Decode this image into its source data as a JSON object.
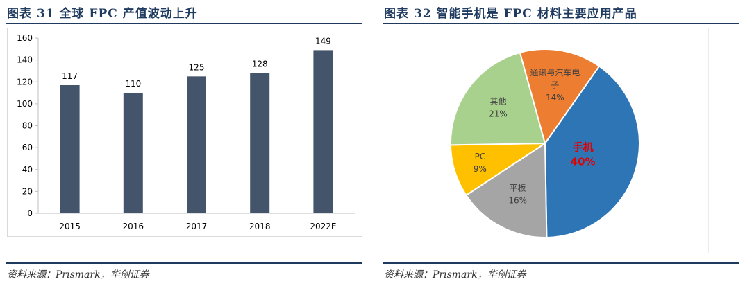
{
  "left_panel": {
    "title": "图表 31   全球 FPC 产值波动上升",
    "source": "资料来源：Prismark，华创证券"
  },
  "right_panel": {
    "title": "图表 32   智能手机是 FPC 材料主要应用产品",
    "source": "资料来源：Prismark，华创证券"
  },
  "chart_data": [
    {
      "type": "bar",
      "title": "全球 FPC 产值波动上升",
      "categories": [
        "2015",
        "2016",
        "2017",
        "2018",
        "2022E"
      ],
      "values": [
        117,
        110,
        125,
        128,
        149
      ],
      "data_labels": [
        "117",
        "110",
        "125",
        "128",
        "149"
      ],
      "y_ticks": [
        "0",
        "20",
        "40",
        "60",
        "80",
        "100",
        "120",
        "140",
        "160"
      ],
      "xlabel": "",
      "ylabel": "",
      "ylim": [
        0,
        160
      ],
      "grid": false,
      "legend": "none",
      "colors": {
        "bar": "#44546a",
        "axis": "#bfbfbf",
        "text": "#000000"
      }
    },
    {
      "type": "pie",
      "title": "智能手机是 FPC 材料主要应用产品",
      "slices": [
        {
          "label": "手机",
          "value": 40,
          "pct_label": "40%",
          "color": "#2e75b6",
          "text_color": "#e00000"
        },
        {
          "label": "平板",
          "value": 16,
          "pct_label": "16%",
          "color": "#a5a5a5",
          "text_color": "#404040"
        },
        {
          "label": "PC",
          "value": 9,
          "pct_label": "9%",
          "color": "#ffc000",
          "text_color": "#404040"
        },
        {
          "label": "其他",
          "value": 21,
          "pct_label": "21%",
          "color": "#a9d18e",
          "text_color": "#404040"
        },
        {
          "label": "通讯与汽车电子",
          "label_lines": [
            "通讯与汽车电",
            "子"
          ],
          "value": 14,
          "pct_label": "14%",
          "color": "#ed7d31",
          "text_color": "#404040"
        }
      ],
      "legend": "none"
    }
  ]
}
